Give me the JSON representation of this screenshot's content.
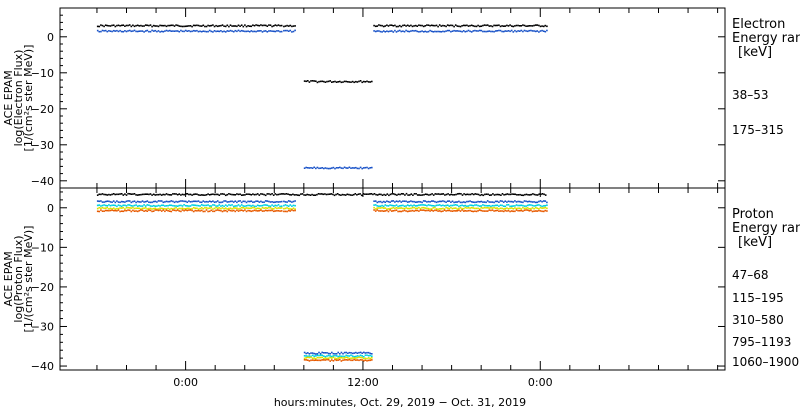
{
  "chart_data": [
    {
      "type": "scatter",
      "panel": "electron",
      "ylabel_lines": [
        "ACE EPAM",
        "log(Electron Flux)",
        "[1/(cm²s ster MeV)]"
      ],
      "ylim": [
        -42,
        8
      ],
      "y_ticks": [
        0,
        -10,
        -20,
        -30,
        -40
      ],
      "y_tick_labels": [
        "0",
        "−10",
        "−20",
        "−30",
        "−40"
      ],
      "legend_title": [
        "Electron",
        "Energy ran",
        "[keV]"
      ],
      "legend_position": "right",
      "series": [
        {
          "name": "38–53",
          "color": "#000000",
          "segments": [
            {
              "x": [
                -6.0,
                6.5
              ],
              "y": 3.0
            },
            {
              "x": [
                6.6,
                7.4
              ],
              "y": 3.0
            },
            {
              "x": [
                8.0,
                12.6
              ],
              "y": -12.5
            },
            {
              "x": [
                12.7,
                24.4
              ],
              "y": 3.0
            }
          ]
        },
        {
          "name": "175–315",
          "color": "#1a53c8",
          "segments": [
            {
              "x": [
                -6.0,
                6.5
              ],
              "y": 1.5
            },
            {
              "x": [
                6.6,
                7.4
              ],
              "y": 1.5
            },
            {
              "x": [
                8.0,
                12.6
              ],
              "y": -36.5
            },
            {
              "x": [
                12.7,
                24.4
              ],
              "y": 1.5
            }
          ]
        }
      ]
    },
    {
      "type": "scatter",
      "panel": "proton",
      "ylabel_lines": [
        "ACE EPAM",
        "log(Proton Flux)",
        "[1/(cm²s ster MeV)]"
      ],
      "ylim": [
        -41,
        5
      ],
      "y_ticks": [
        0,
        -10,
        -20,
        -30,
        -40
      ],
      "y_tick_labels": [
        "0",
        "−10",
        "−20",
        "−30",
        "−40"
      ],
      "legend_title": [
        "Proton",
        "Energy ran",
        "[keV]"
      ],
      "legend_position": "right",
      "series": [
        {
          "name": "47–68",
          "color": "#000000",
          "segments": [
            {
              "x": [
                -6.0,
                24.4
              ],
              "y": 3.3
            }
          ]
        },
        {
          "name": "115–195",
          "color": "#1a53c8",
          "segments": [
            {
              "x": [
                -6.0,
                6.5
              ],
              "y": 1.5
            },
            {
              "x": [
                6.6,
                7.4
              ],
              "y": 1.5
            },
            {
              "x": [
                8.0,
                12.6
              ],
              "y": -36.8
            },
            {
              "x": [
                12.7,
                24.4
              ],
              "y": 1.5
            }
          ]
        },
        {
          "name": "310–580",
          "color": "#00d0e0",
          "segments": [
            {
              "x": [
                -6.0,
                6.5
              ],
              "y": 0.5
            },
            {
              "x": [
                6.6,
                7.4
              ],
              "y": 0.5
            },
            {
              "x": [
                8.0,
                12.6
              ],
              "y": -37.5
            },
            {
              "x": [
                12.7,
                24.4
              ],
              "y": 0.5
            }
          ]
        },
        {
          "name": "795–1193",
          "color": "#d8e000",
          "segments": [
            {
              "x": [
                -6.0,
                6.5
              ],
              "y": -0.2
            },
            {
              "x": [
                6.6,
                7.4
              ],
              "y": -0.2
            },
            {
              "x": [
                8.0,
                12.6
              ],
              "y": -38.0
            },
            {
              "x": [
                12.7,
                24.4
              ],
              "y": -0.2
            }
          ]
        },
        {
          "name": "1060–1900",
          "color": "#e85a00",
          "segments": [
            {
              "x": [
                -6.0,
                6.5
              ],
              "y": -0.8
            },
            {
              "x": [
                6.6,
                7.4
              ],
              "y": -0.8
            },
            {
              "x": [
                8.0,
                12.6
              ],
              "y": -38.6
            },
            {
              "x": [
                12.7,
                24.4
              ],
              "y": -0.8
            }
          ]
        }
      ]
    }
  ],
  "x_axis": {
    "unit": "hours from 00:00, Oct. 30, 2019",
    "xlim": [
      -8.5,
      36.5
    ],
    "tick_labels": [
      "0:00",
      "12:00",
      "0:00"
    ],
    "tick_values": [
      0,
      12,
      24
    ],
    "xlabel": "hours:minutes, Oct. 29, 2019 − Oct. 31, 2019"
  }
}
